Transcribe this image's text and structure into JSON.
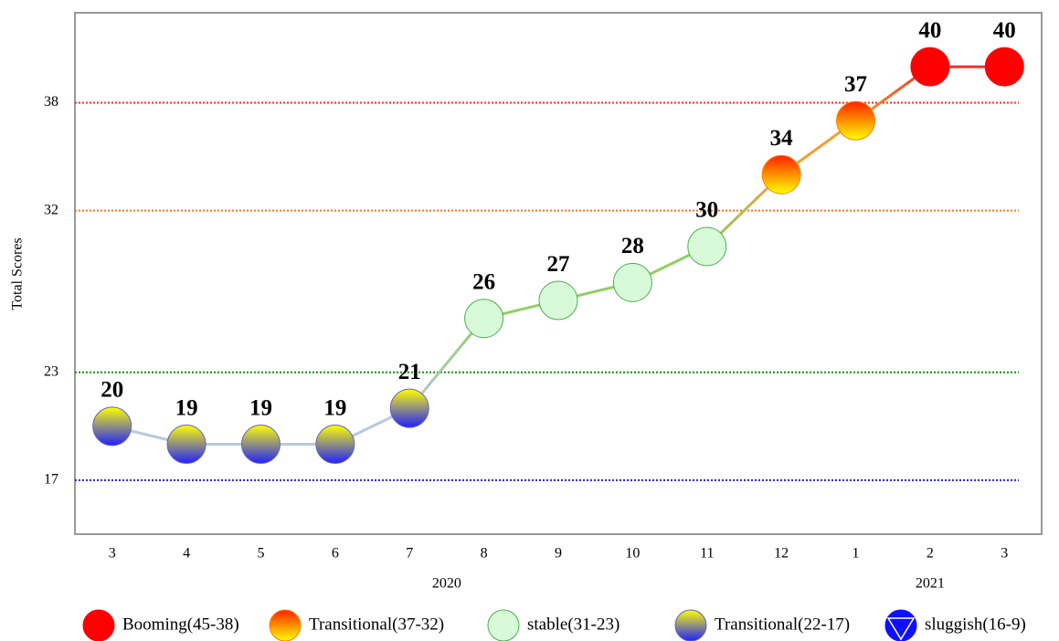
{
  "chart_data": {
    "type": "line",
    "y_label": "Total Scores",
    "categories": [
      "3",
      "4",
      "5",
      "6",
      "7",
      "8",
      "9",
      "10",
      "11",
      "12",
      "1",
      "2",
      "3"
    ],
    "x_groups": [
      {
        "label": "2020",
        "count": 10
      },
      {
        "label": "2021",
        "count": 3
      }
    ],
    "values": [
      20,
      19,
      19,
      19,
      21,
      26,
      27,
      28,
      30,
      34,
      37,
      40,
      40
    ],
    "point_class": [
      3,
      3,
      3,
      3,
      3,
      2,
      2,
      2,
      2,
      1,
      1,
      0,
      0
    ],
    "ylim": [
      14,
      43
    ],
    "yticks": [
      17,
      23,
      32,
      38
    ],
    "reference_lines": [
      {
        "value": 38,
        "color": "#ff2a2a"
      },
      {
        "value": 32,
        "color": "#f07820"
      },
      {
        "value": 23,
        "color": "#1a8a1a"
      },
      {
        "value": 17,
        "color": "#2020d0"
      }
    ],
    "classes": [
      {
        "label": "Booming(45-38)",
        "colors": [
          "#ff0000",
          "#ff0000"
        ],
        "stroke": "#ff0000",
        "line": "#f03030"
      },
      {
        "label": "Transitional(37-32)",
        "colors": [
          "#ff2000",
          "#ffff00"
        ],
        "stroke": "#ff8000",
        "line": "#f0a030"
      },
      {
        "label": "stable(31-23)",
        "colors": [
          "#d8fad8",
          "#d8fad8"
        ],
        "stroke": "#4caf50",
        "line": "#90d060"
      },
      {
        "label": "Transitional(22-17)",
        "colors": [
          "#ffff00",
          "#2020ff"
        ],
        "stroke": "#6060c0",
        "line": "#b8c8e0"
      },
      {
        "label": "sluggish(16-9)",
        "colors": [
          "#1010ff",
          "#1010ff"
        ],
        "stroke": "#1010ff",
        "line": "#1010ff"
      }
    ]
  }
}
